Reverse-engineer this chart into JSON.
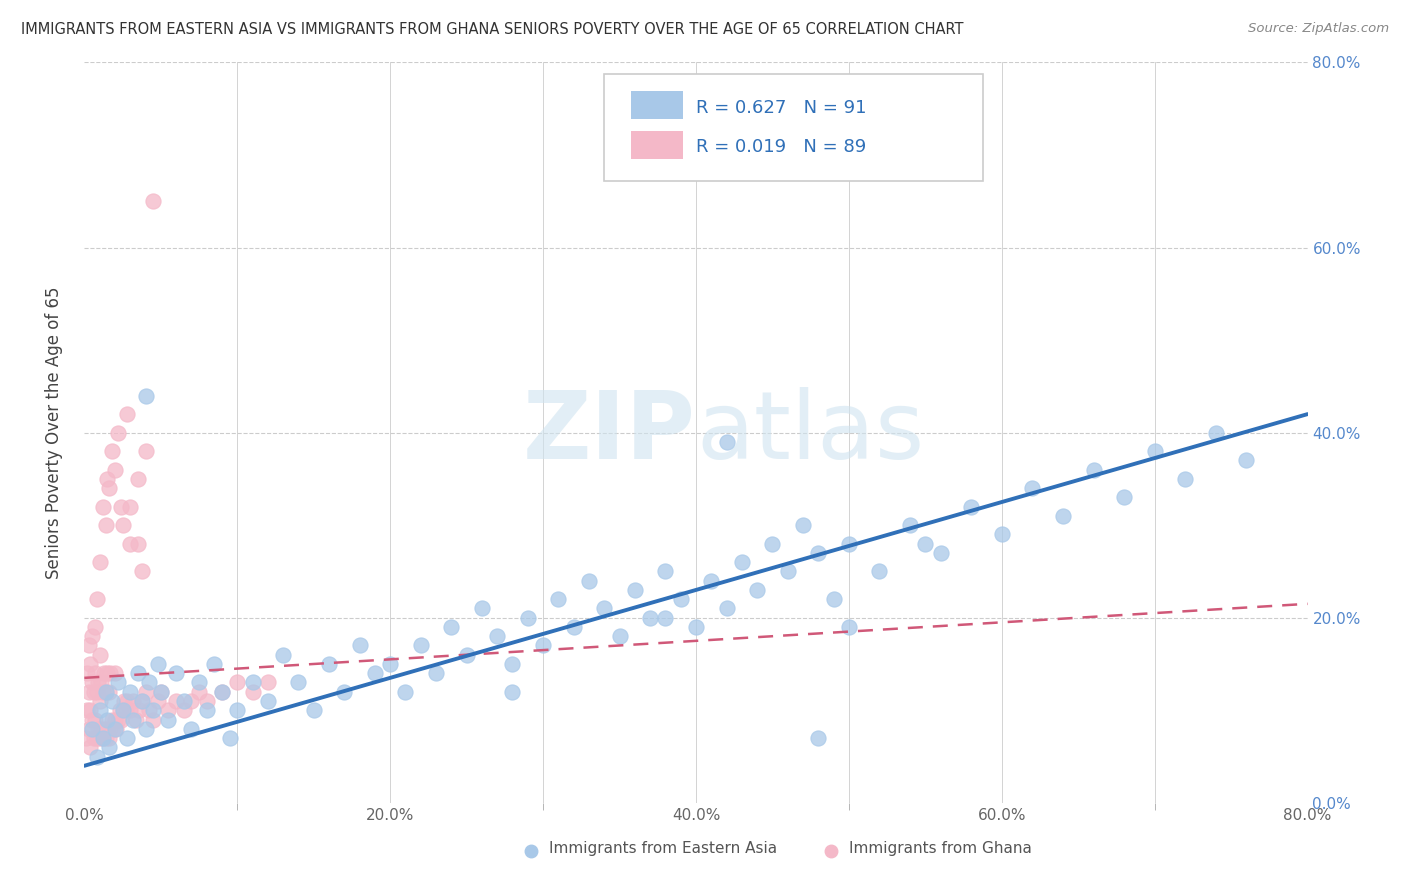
{
  "title": "IMMIGRANTS FROM EASTERN ASIA VS IMMIGRANTS FROM GHANA SENIORS POVERTY OVER THE AGE OF 65 CORRELATION CHART",
  "source": "Source: ZipAtlas.com",
  "ylabel_right": [
    "0.0%",
    "20.0%",
    "40.0%",
    "60.0%",
    "80.0%"
  ],
  "xlabel_bottom": [
    "0.0%",
    "20.0%",
    "40.0%",
    "60.0%",
    "80.0%"
  ],
  "ylabel_label": "Seniors Poverty Over the Age of 65",
  "legend_label1": "Immigrants from Eastern Asia",
  "legend_label2": "Immigrants from Ghana",
  "R1": 0.627,
  "N1": 91,
  "R2": 0.019,
  "N2": 89,
  "color_blue": "#a8c8e8",
  "color_pink": "#f4b8c8",
  "color_blue_line": "#3070b8",
  "color_pink_line": "#d05878",
  "watermark_zip": "ZIP",
  "watermark_atlas": "atlas",
  "xlim": [
    0.0,
    0.8
  ],
  "ylim": [
    0.0,
    0.8
  ],
  "blue_scatter_x": [
    0.005,
    0.008,
    0.01,
    0.012,
    0.014,
    0.015,
    0.016,
    0.018,
    0.02,
    0.022,
    0.025,
    0.028,
    0.03,
    0.032,
    0.035,
    0.038,
    0.04,
    0.042,
    0.045,
    0.048,
    0.05,
    0.055,
    0.06,
    0.065,
    0.07,
    0.075,
    0.08,
    0.085,
    0.09,
    0.095,
    0.1,
    0.11,
    0.12,
    0.13,
    0.14,
    0.15,
    0.16,
    0.17,
    0.18,
    0.19,
    0.2,
    0.21,
    0.22,
    0.23,
    0.24,
    0.25,
    0.26,
    0.27,
    0.28,
    0.29,
    0.3,
    0.31,
    0.32,
    0.33,
    0.34,
    0.35,
    0.36,
    0.37,
    0.38,
    0.39,
    0.4,
    0.41,
    0.42,
    0.43,
    0.44,
    0.45,
    0.46,
    0.47,
    0.48,
    0.49,
    0.5,
    0.52,
    0.54,
    0.56,
    0.58,
    0.6,
    0.62,
    0.64,
    0.66,
    0.68,
    0.7,
    0.72,
    0.74,
    0.76,
    0.04,
    0.48,
    0.5,
    0.38,
    0.42,
    0.28,
    0.55
  ],
  "blue_scatter_y": [
    0.08,
    0.05,
    0.1,
    0.07,
    0.12,
    0.09,
    0.06,
    0.11,
    0.08,
    0.13,
    0.1,
    0.07,
    0.12,
    0.09,
    0.14,
    0.11,
    0.08,
    0.13,
    0.1,
    0.15,
    0.12,
    0.09,
    0.14,
    0.11,
    0.08,
    0.13,
    0.1,
    0.15,
    0.12,
    0.07,
    0.1,
    0.13,
    0.11,
    0.16,
    0.13,
    0.1,
    0.15,
    0.12,
    0.17,
    0.14,
    0.15,
    0.12,
    0.17,
    0.14,
    0.19,
    0.16,
    0.21,
    0.18,
    0.15,
    0.2,
    0.17,
    0.22,
    0.19,
    0.24,
    0.21,
    0.18,
    0.23,
    0.2,
    0.25,
    0.22,
    0.19,
    0.24,
    0.21,
    0.26,
    0.23,
    0.28,
    0.25,
    0.3,
    0.27,
    0.22,
    0.28,
    0.25,
    0.3,
    0.27,
    0.32,
    0.29,
    0.34,
    0.31,
    0.36,
    0.33,
    0.38,
    0.35,
    0.4,
    0.37,
    0.44,
    0.07,
    0.19,
    0.2,
    0.39,
    0.12,
    0.28
  ],
  "pink_scatter_x": [
    0.001,
    0.002,
    0.002,
    0.003,
    0.003,
    0.003,
    0.004,
    0.004,
    0.004,
    0.005,
    0.005,
    0.005,
    0.006,
    0.006,
    0.007,
    0.007,
    0.007,
    0.008,
    0.008,
    0.009,
    0.009,
    0.01,
    0.01,
    0.01,
    0.011,
    0.011,
    0.012,
    0.012,
    0.013,
    0.013,
    0.014,
    0.014,
    0.015,
    0.015,
    0.016,
    0.016,
    0.017,
    0.017,
    0.018,
    0.019,
    0.02,
    0.02,
    0.021,
    0.022,
    0.023,
    0.024,
    0.025,
    0.026,
    0.027,
    0.028,
    0.03,
    0.032,
    0.034,
    0.036,
    0.038,
    0.04,
    0.042,
    0.045,
    0.048,
    0.05,
    0.055,
    0.06,
    0.065,
    0.07,
    0.075,
    0.08,
    0.09,
    0.1,
    0.11,
    0.12,
    0.025,
    0.03,
    0.035,
    0.04,
    0.015,
    0.018,
    0.022,
    0.028,
    0.035,
    0.012,
    0.008,
    0.01,
    0.014,
    0.016,
    0.02,
    0.024,
    0.03,
    0.038,
    0.045
  ],
  "pink_scatter_y": [
    0.07,
    0.1,
    0.14,
    0.08,
    0.12,
    0.17,
    0.06,
    0.1,
    0.15,
    0.09,
    0.13,
    0.18,
    0.07,
    0.12,
    0.09,
    0.14,
    0.19,
    0.07,
    0.12,
    0.08,
    0.13,
    0.07,
    0.11,
    0.16,
    0.08,
    0.13,
    0.07,
    0.12,
    0.08,
    0.14,
    0.07,
    0.12,
    0.08,
    0.14,
    0.07,
    0.12,
    0.08,
    0.14,
    0.09,
    0.08,
    0.09,
    0.14,
    0.08,
    0.09,
    0.1,
    0.09,
    0.1,
    0.11,
    0.1,
    0.11,
    0.1,
    0.11,
    0.09,
    0.1,
    0.11,
    0.12,
    0.1,
    0.09,
    0.11,
    0.12,
    0.1,
    0.11,
    0.1,
    0.11,
    0.12,
    0.11,
    0.12,
    0.13,
    0.12,
    0.13,
    0.3,
    0.32,
    0.35,
    0.38,
    0.35,
    0.38,
    0.4,
    0.42,
    0.28,
    0.32,
    0.22,
    0.26,
    0.3,
    0.34,
    0.36,
    0.32,
    0.28,
    0.25,
    0.65
  ],
  "blue_line_x": [
    0.0,
    0.8
  ],
  "blue_line_y": [
    0.04,
    0.42
  ],
  "pink_line_x": [
    0.0,
    0.8
  ],
  "pink_line_y": [
    0.135,
    0.215
  ],
  "bg_color": "#ffffff",
  "grid_color": "#cccccc"
}
